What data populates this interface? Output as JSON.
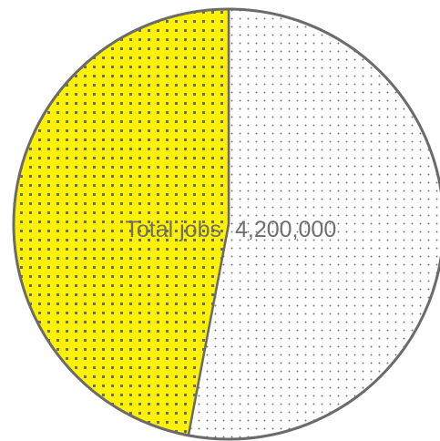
{
  "chart_data": {
    "type": "pie",
    "title": "",
    "center_label": "Total jobs",
    "center_value": "4,200,000",
    "slices": [
      {
        "value": 53,
        "color": "#ffffff",
        "dot_color": "#7a7a7a",
        "pattern": "fine-dots"
      },
      {
        "value": 47,
        "color": "#fff200",
        "dot_color": "#6b6b6b",
        "pattern": "coarse-dots"
      }
    ],
    "start_angle_deg": 0,
    "outline_color": "#6b6b6b"
  }
}
